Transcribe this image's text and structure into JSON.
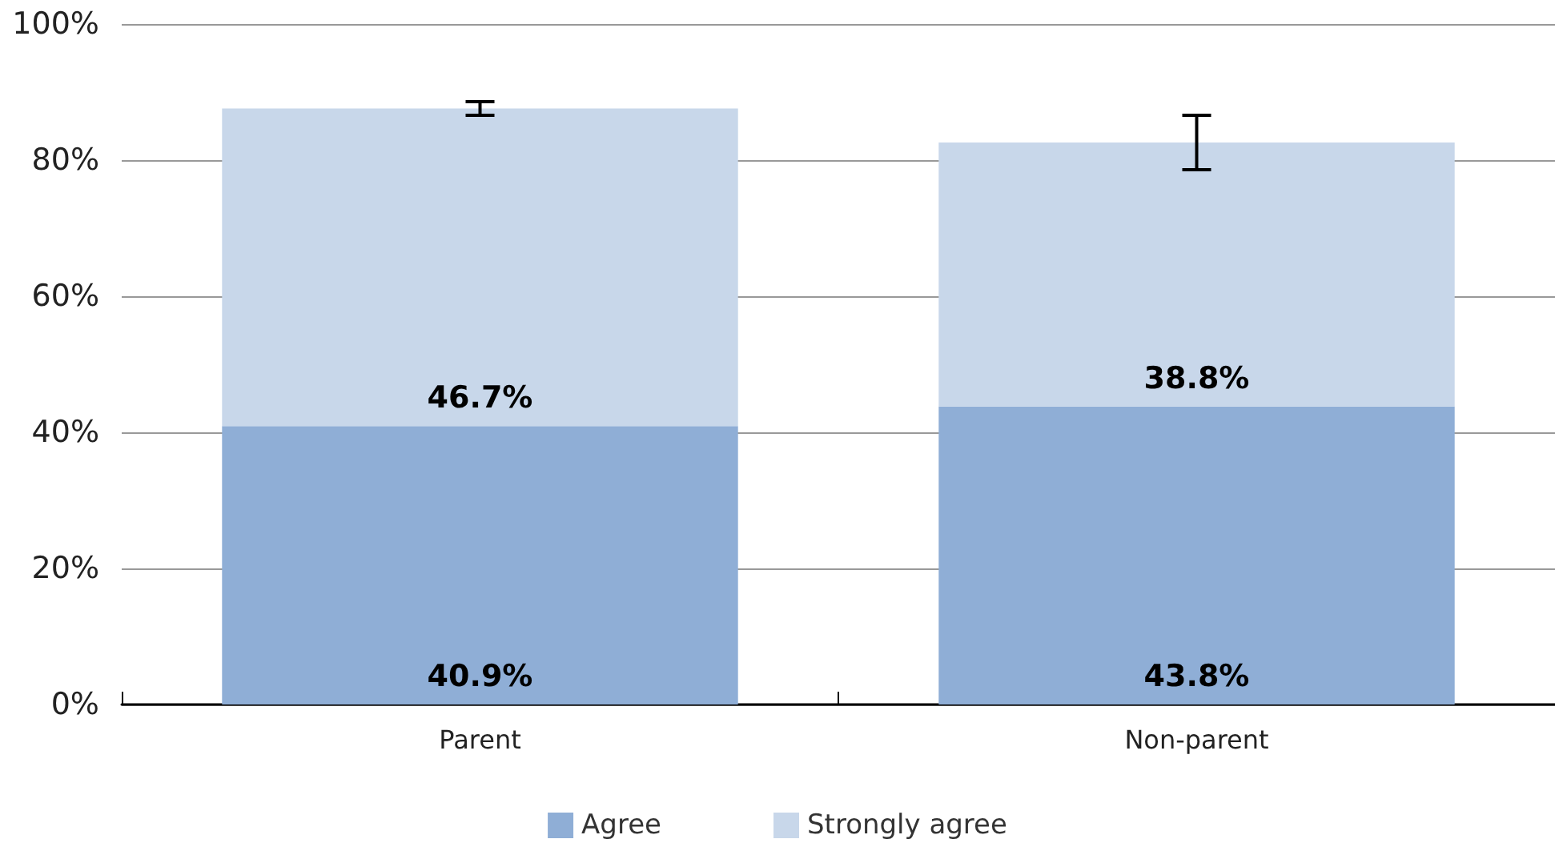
{
  "chart_data": {
    "type": "bar",
    "stacked": true,
    "categories": [
      "Parent",
      "Non-parent"
    ],
    "series": [
      {
        "name": "Agree",
        "color": "#8faed6",
        "values": [
          40.9,
          43.8
        ],
        "value_labels": [
          "40.9%",
          "43.8%"
        ]
      },
      {
        "name": "Strongly agree",
        "color": "#c8d7ea",
        "values": [
          46.7,
          38.8
        ],
        "value_labels": [
          "46.7%",
          "38.8%"
        ],
        "errors": [
          1,
          4
        ]
      }
    ],
    "ylim": [
      0,
      100
    ],
    "yticks": [
      {
        "value": 0,
        "label": "0%"
      },
      {
        "value": 20,
        "label": "20%"
      },
      {
        "value": 40,
        "label": "40%"
      },
      {
        "value": 60,
        "label": "60%"
      },
      {
        "value": 80,
        "label": "80%"
      },
      {
        "value": 100,
        "label": "100%"
      }
    ],
    "grid": "y",
    "legend": "bottom"
  }
}
